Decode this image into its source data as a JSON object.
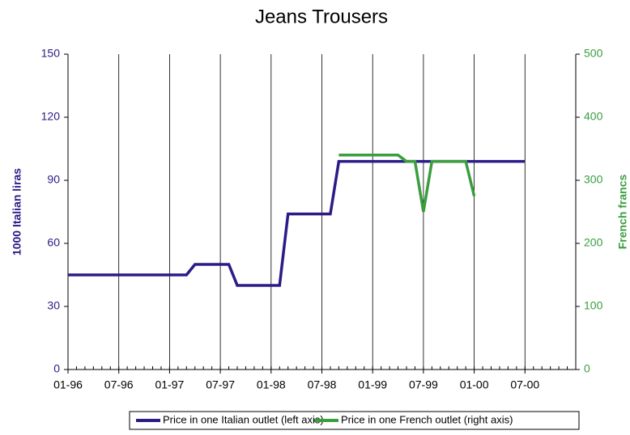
{
  "chart_data": {
    "type": "line",
    "title": "Jeans Trousers",
    "y_label": "1000 Italian liras",
    "y2_label": "French francs",
    "categories": [
      "01-96",
      null,
      null,
      null,
      null,
      null,
      "07-96",
      null,
      null,
      null,
      null,
      null,
      "01-97",
      null,
      null,
      null,
      null,
      null,
      "07-97",
      null,
      null,
      null,
      null,
      null,
      "01-98",
      null,
      null,
      null,
      null,
      null,
      "07-98",
      null,
      null,
      null,
      null,
      null,
      "01-99",
      null,
      null,
      null,
      null,
      null,
      "07-99",
      null,
      null,
      null,
      null,
      null,
      "01-00",
      null,
      null,
      null,
      null,
      null,
      "07-00",
      null,
      null,
      null,
      null,
      null,
      null
    ],
    "series": [
      {
        "name": "Price in one Italian outlet (left axis)",
        "color": "#2b1b86",
        "values": [
          45,
          45,
          45,
          45,
          45,
          45,
          45,
          45,
          45,
          45,
          45,
          45,
          45,
          45,
          45,
          50,
          50,
          50,
          50,
          50,
          40,
          40,
          40,
          40,
          40,
          40,
          74,
          74,
          74,
          74,
          74,
          74,
          99,
          99,
          99,
          99,
          99,
          99,
          99,
          99,
          99,
          99,
          99,
          99,
          99,
          99,
          99,
          99,
          99,
          99,
          99,
          99,
          99,
          99,
          99,
          null,
          null,
          null,
          null,
          null,
          null
        ]
      },
      {
        "name": "Price in one French outlet (right axis)",
        "color": "#3a9e3f",
        "axis": "y2",
        "values": [
          null,
          null,
          null,
          null,
          null,
          null,
          null,
          null,
          null,
          null,
          null,
          null,
          null,
          null,
          null,
          null,
          null,
          null,
          null,
          null,
          null,
          null,
          null,
          null,
          null,
          null,
          null,
          null,
          null,
          null,
          null,
          null,
          340,
          340,
          340,
          340,
          340,
          340,
          340,
          340,
          330,
          330,
          250,
          330,
          330,
          330,
          330,
          330,
          275,
          null,
          null,
          null,
          null,
          null,
          null,
          null,
          null,
          null,
          null,
          null,
          null
        ]
      }
    ],
    "ylim": [
      0,
      150
    ],
    "yticks": [
      0,
      30,
      60,
      90,
      120,
      150
    ],
    "y2lim": [
      0,
      500
    ],
    "y2ticks": [
      0,
      100,
      200,
      300,
      400,
      500
    ],
    "grid": true
  }
}
